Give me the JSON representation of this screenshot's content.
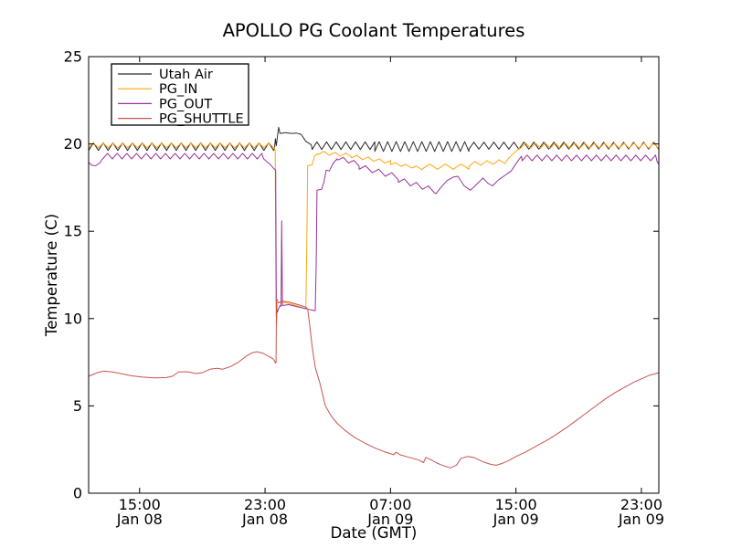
{
  "chart_data": {
    "type": "line",
    "title": "APOLLO PG Coolant Temperatures",
    "xlabel": "Date (GMT)",
    "ylabel": "Temperature (C)",
    "x_unit_note": "hours since Jan 08 00:00 GMT",
    "xlim": [
      11.75,
      48.11
    ],
    "ylim": [
      0,
      25
    ],
    "grid": false,
    "legend_position": "upper left",
    "background": "#ffffff",
    "axis_color": "#000000",
    "x_ticks": [
      {
        "t": 15,
        "time": "15:00",
        "date": "Jan 08"
      },
      {
        "t": 23,
        "time": "23:00",
        "date": "Jan 08"
      },
      {
        "t": 31,
        "time": "07:00",
        "date": "Jan 09"
      },
      {
        "t": 39,
        "time": "15:00",
        "date": "Jan 09"
      },
      {
        "t": 47,
        "time": "23:00",
        "date": "Jan 09"
      }
    ],
    "y_ticks": [
      0,
      5,
      10,
      15,
      20,
      25
    ],
    "series": [
      {
        "name": "Utah Air",
        "color": "#2b2b2b",
        "segments": [
          {
            "osc": true,
            "from": 11.75,
            "to": 23.55,
            "v1": 19.85,
            "v2": 19.85,
            "amp": 0.22,
            "period": 0.62
          },
          {
            "points": [
              [
                23.6,
                19.75
              ],
              [
                23.66,
                20.3
              ],
              [
                23.72,
                19.9
              ],
              [
                23.8,
                20.5
              ],
              [
                23.87,
                20.95
              ],
              [
                23.95,
                20.6
              ],
              [
                24.3,
                20.65
              ],
              [
                24.7,
                20.6
              ],
              [
                25.0,
                20.62
              ],
              [
                25.3,
                20.55
              ],
              [
                25.6,
                20.15
              ],
              [
                25.95,
                19.95
              ]
            ]
          },
          {
            "osc": true,
            "from": 26.0,
            "to": 30.0,
            "v1": 19.9,
            "v2": 19.9,
            "amp": 0.22,
            "period": 0.6
          },
          {
            "osc": true,
            "from": 30.0,
            "to": 36.0,
            "v1": 19.85,
            "v2": 19.85,
            "amp": 0.28,
            "period": 0.55
          },
          {
            "osc": true,
            "from": 36.0,
            "to": 48.1,
            "v1": 19.9,
            "v2": 19.9,
            "amp": 0.2,
            "period": 0.64
          }
        ]
      },
      {
        "name": "PG_IN",
        "color": "#ffa510",
        "segments": [
          {
            "osc": true,
            "from": 11.75,
            "to": 23.55,
            "v1": 19.92,
            "v2": 19.92,
            "amp": 0.14,
            "period": 0.62
          },
          {
            "points": [
              [
                23.6,
                19.8
              ],
              [
                23.65,
                19.55
              ],
              [
                23.7,
                10.2
              ],
              [
                23.74,
                9.65
              ],
              [
                23.8,
                10.9
              ],
              [
                24.1,
                10.95
              ],
              [
                24.8,
                10.8
              ],
              [
                25.3,
                10.65
              ],
              [
                25.6,
                10.55
              ],
              [
                25.66,
                14.0
              ],
              [
                25.72,
                18.75
              ],
              [
                26.0,
                18.8
              ],
              [
                26.15,
                19.3
              ],
              [
                26.35,
                19.45
              ]
            ]
          },
          {
            "osc": true,
            "from": 26.4,
            "to": 28.5,
            "v1": 19.5,
            "v2": 19.35,
            "amp": 0.1,
            "period": 0.7
          },
          {
            "osc": true,
            "from": 28.5,
            "to": 31.0,
            "v1": 19.3,
            "v2": 18.95,
            "amp": 0.1,
            "period": 0.7
          },
          {
            "osc": true,
            "from": 31.0,
            "to": 33.0,
            "v1": 18.9,
            "v2": 18.6,
            "amp": 0.08,
            "period": 0.7
          },
          {
            "osc": true,
            "from": 33.0,
            "to": 36.0,
            "v1": 18.7,
            "v2": 18.7,
            "amp": 0.15,
            "period": 1.0
          },
          {
            "osc": true,
            "from": 36.0,
            "to": 38.3,
            "v1": 18.85,
            "v2": 19.0,
            "amp": 0.12,
            "period": 0.8
          },
          {
            "points": [
              [
                38.5,
                19.15
              ],
              [
                38.9,
                19.5
              ],
              [
                39.2,
                19.75
              ]
            ]
          },
          {
            "osc": true,
            "from": 39.3,
            "to": 48.1,
            "v1": 19.9,
            "v2": 19.9,
            "amp": 0.15,
            "period": 0.64
          }
        ]
      },
      {
        "name": "PG_OUT",
        "color": "#993399",
        "segments": [
          {
            "points": [
              [
                11.75,
                18.95
              ],
              [
                11.95,
                18.78
              ],
              [
                12.2,
                18.75
              ],
              [
                12.45,
                18.9
              ],
              [
                12.6,
                19.1
              ]
            ]
          },
          {
            "osc": true,
            "from": 12.65,
            "to": 22.8,
            "v1": 19.3,
            "v2": 19.3,
            "amp": 0.16,
            "period": 0.62
          },
          {
            "points": [
              [
                22.9,
                19.15
              ],
              [
                23.3,
                18.85
              ],
              [
                23.55,
                18.6
              ],
              [
                23.68,
                18.5
              ],
              [
                23.72,
                10.6
              ],
              [
                23.77,
                10.35
              ],
              [
                23.95,
                10.75
              ],
              [
                24.02,
                10.7
              ],
              [
                24.06,
                15.6
              ],
              [
                24.11,
                10.75
              ],
              [
                24.5,
                10.8
              ],
              [
                25.2,
                10.65
              ],
              [
                25.9,
                10.5
              ],
              [
                26.2,
                10.45
              ],
              [
                26.26,
                13.0
              ],
              [
                26.31,
                17.35
              ],
              [
                26.6,
                17.4
              ],
              [
                26.75,
                17.8
              ],
              [
                26.9,
                18.5
              ],
              [
                27.1,
                18.45
              ],
              [
                27.35,
                18.9
              ],
              [
                27.6,
                19.15
              ]
            ]
          },
          {
            "osc": true,
            "from": 27.65,
            "to": 29.0,
            "v1": 19.2,
            "v2": 18.85,
            "amp": 0.12,
            "period": 0.7
          },
          {
            "osc": true,
            "from": 29.0,
            "to": 31.5,
            "v1": 18.7,
            "v2": 18.1,
            "amp": 0.15,
            "period": 0.8
          },
          {
            "osc": true,
            "from": 31.5,
            "to": 33.8,
            "v1": 17.95,
            "v2": 17.35,
            "amp": 0.15,
            "period": 0.8
          },
          {
            "points": [
              [
                33.9,
                17.15
              ],
              [
                34.2,
                17.5
              ],
              [
                34.6,
                17.9
              ],
              [
                35.0,
                18.1
              ],
              [
                35.3,
                18.15
              ],
              [
                35.7,
                17.6
              ],
              [
                36.1,
                17.35
              ],
              [
                36.5,
                17.7
              ],
              [
                36.9,
                18.05
              ],
              [
                37.2,
                17.75
              ],
              [
                37.5,
                17.6
              ],
              [
                37.9,
                17.95
              ],
              [
                38.3,
                18.2
              ],
              [
                38.7,
                18.45
              ],
              [
                39.1,
                19.0
              ],
              [
                39.35,
                19.3
              ]
            ]
          },
          {
            "osc": true,
            "from": 39.4,
            "to": 47.9,
            "v1": 19.2,
            "v2": 19.2,
            "amp": 0.16,
            "period": 0.62
          },
          {
            "points": [
              [
                48.0,
                19.0
              ],
              [
                48.1,
                18.85
              ]
            ]
          }
        ]
      },
      {
        "name": "PG_SHUTTLE",
        "color": "#c85450",
        "segments": [
          {
            "points": [
              [
                11.75,
                6.7
              ],
              [
                12.3,
                6.9
              ],
              [
                12.7,
                7.0
              ],
              [
                13.2,
                6.95
              ],
              [
                13.8,
                6.85
              ],
              [
                14.5,
                6.72
              ],
              [
                15.2,
                6.65
              ],
              [
                16.0,
                6.6
              ],
              [
                16.7,
                6.62
              ],
              [
                17.1,
                6.7
              ],
              [
                17.5,
                6.95
              ],
              [
                18.1,
                6.95
              ],
              [
                18.6,
                6.85
              ],
              [
                19.0,
                6.9
              ],
              [
                19.5,
                7.1
              ],
              [
                19.9,
                7.15
              ],
              [
                20.3,
                7.1
              ],
              [
                20.8,
                7.25
              ],
              [
                21.3,
                7.5
              ],
              [
                21.8,
                7.85
              ],
              [
                22.2,
                8.05
              ],
              [
                22.5,
                8.1
              ],
              [
                22.9,
                8.0
              ],
              [
                23.2,
                7.85
              ],
              [
                23.5,
                7.7
              ],
              [
                23.62,
                7.55
              ],
              [
                23.66,
                7.45
              ],
              [
                23.7,
                7.5
              ],
              [
                23.73,
                11.15
              ],
              [
                23.85,
                10.9
              ],
              [
                24.1,
                11.0
              ],
              [
                24.5,
                10.95
              ],
              [
                24.9,
                10.85
              ],
              [
                25.3,
                10.75
              ],
              [
                25.6,
                10.65
              ],
              [
                25.72,
                10.55
              ],
              [
                25.85,
                9.6
              ],
              [
                26.0,
                8.4
              ],
              [
                26.2,
                7.2
              ],
              [
                26.5,
                6.3
              ],
              [
                26.85,
                5.0
              ],
              [
                27.2,
                4.45
              ],
              [
                27.6,
                4.0
              ],
              [
                28.1,
                3.6
              ],
              [
                28.7,
                3.2
              ],
              [
                29.4,
                2.85
              ],
              [
                30.1,
                2.55
              ],
              [
                30.7,
                2.35
              ],
              [
                31.2,
                2.2
              ],
              [
                31.35,
                2.35
              ],
              [
                31.6,
                2.2
              ],
              [
                32.2,
                2.05
              ],
              [
                32.8,
                1.9
              ],
              [
                33.1,
                1.75
              ],
              [
                33.25,
                2.05
              ],
              [
                33.5,
                1.95
              ],
              [
                33.9,
                1.75
              ],
              [
                34.3,
                1.6
              ],
              [
                34.8,
                1.45
              ],
              [
                35.2,
                1.6
              ],
              [
                35.5,
                2.0
              ],
              [
                35.9,
                2.1
              ],
              [
                36.3,
                2.05
              ],
              [
                36.9,
                1.8
              ],
              [
                37.4,
                1.65
              ],
              [
                37.75,
                1.6
              ],
              [
                38.1,
                1.7
              ],
              [
                38.5,
                1.85
              ],
              [
                39.0,
                2.1
              ],
              [
                39.6,
                2.35
              ],
              [
                40.1,
                2.6
              ],
              [
                40.7,
                2.9
              ],
              [
                41.2,
                3.15
              ],
              [
                41.8,
                3.5
              ],
              [
                42.3,
                3.8
              ],
              [
                42.9,
                4.2
              ],
              [
                43.5,
                4.6
              ],
              [
                44.1,
                5.0
              ],
              [
                44.7,
                5.4
              ],
              [
                45.3,
                5.75
              ],
              [
                45.9,
                6.05
              ],
              [
                46.5,
                6.35
              ],
              [
                47.0,
                6.55
              ],
              [
                47.5,
                6.75
              ],
              [
                48.1,
                6.9
              ]
            ]
          }
        ]
      }
    ]
  }
}
